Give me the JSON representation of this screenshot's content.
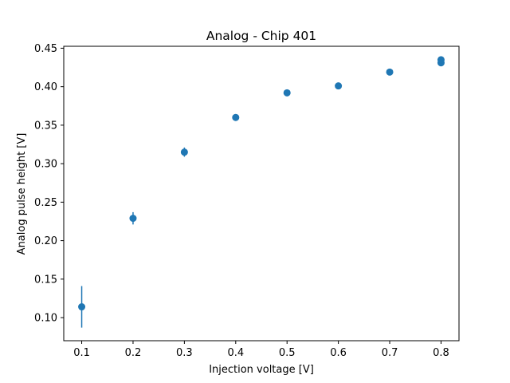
{
  "chart_data": {
    "type": "scatter",
    "title": "Analog - Chip 401",
    "xlabel": "Injection voltage [V]",
    "ylabel": "Analog pulse height [V]",
    "xlim": [
      0.065,
      0.835
    ],
    "ylim": [
      0.07,
      0.4525
    ],
    "x_ticks": [
      0.1,
      0.2,
      0.3,
      0.4,
      0.5,
      0.6,
      0.7,
      0.8
    ],
    "x_tick_labels": [
      "0.1",
      "0.2",
      "0.3",
      "0.4",
      "0.5",
      "0.6",
      "0.7",
      "0.8"
    ],
    "y_ticks": [
      0.1,
      0.15,
      0.2,
      0.25,
      0.3,
      0.35,
      0.4,
      0.45
    ],
    "y_tick_labels": [
      "0.10",
      "0.15",
      "0.20",
      "0.25",
      "0.30",
      "0.35",
      "0.40",
      "0.45"
    ],
    "grid": false,
    "color": "#1f77b4",
    "series": [
      {
        "points": [
          {
            "x": 0.1,
            "y": 0.114,
            "yerr": 0.027
          },
          {
            "x": 0.2,
            "y": 0.229,
            "yerr": 0.008
          },
          {
            "x": 0.3,
            "y": 0.315,
            "yerr": 0.006
          },
          {
            "x": 0.4,
            "y": 0.36,
            "yerr": 0.002
          },
          {
            "x": 0.5,
            "y": 0.392,
            "yerr": 0.002
          },
          {
            "x": 0.6,
            "y": 0.401,
            "yerr": 0.002
          },
          {
            "x": 0.7,
            "y": 0.419,
            "yerr": 0.002
          },
          {
            "x": 0.8,
            "y": 0.431,
            "yerr": 0.002
          },
          {
            "x": 0.8,
            "y": 0.435,
            "yerr": 0.001
          }
        ]
      }
    ]
  }
}
